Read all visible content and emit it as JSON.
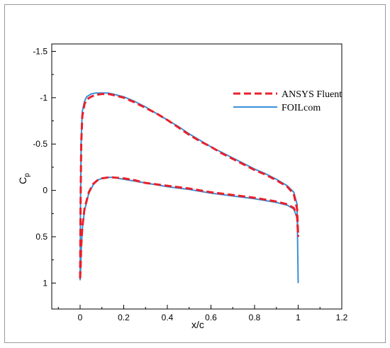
{
  "chart_data": {
    "type": "line",
    "title": "",
    "xlabel": "x/c",
    "ylabel": "C",
    "ylabel_subscript": "p",
    "xlim": [
      -0.13,
      1.2
    ],
    "ylim": [
      1.28,
      -1.58
    ],
    "y_inverted": true,
    "xticks": [
      0,
      0.2,
      0.4,
      0.6,
      0.8,
      1,
      1.2
    ],
    "xtick_labels": [
      "0",
      "0.2",
      "0.4",
      "0.6",
      "0.8",
      "1",
      "1.2"
    ],
    "yticks": [
      -1.5,
      -1,
      -0.5,
      0,
      0.5,
      1
    ],
    "ytick_labels": [
      "-1.5",
      "-1",
      "-0.5",
      "0",
      "0.5",
      "1"
    ],
    "grid": false,
    "legend_position": "top-right",
    "series": [
      {
        "name": "ANSYS Fluent",
        "color": "#e8202a",
        "dash": "dashed",
        "upper": {
          "x": [
            0,
            0.002,
            0.005,
            0.01,
            0.02,
            0.03,
            0.05,
            0.07,
            0.1,
            0.13,
            0.15,
            0.2,
            0.25,
            0.3,
            0.35,
            0.4,
            0.45,
            0.5,
            0.55,
            0.6,
            0.65,
            0.7,
            0.75,
            0.8,
            0.85,
            0.9,
            0.95,
            0.98,
            0.995,
            1.0
          ],
          "y": [
            0.95,
            0.2,
            -0.5,
            -0.8,
            -0.93,
            -0.98,
            -1.01,
            -1.03,
            -1.04,
            -1.04,
            -1.03,
            -1.0,
            -0.95,
            -0.89,
            -0.83,
            -0.76,
            -0.68,
            -0.6,
            -0.53,
            -0.47,
            -0.4,
            -0.34,
            -0.28,
            -0.22,
            -0.17,
            -0.11,
            -0.04,
            0.04,
            0.2,
            0.5
          ]
        },
        "lower": {
          "x": [
            0,
            0.002,
            0.005,
            0.01,
            0.02,
            0.04,
            0.06,
            0.08,
            0.1,
            0.13,
            0.15,
            0.2,
            0.25,
            0.3,
            0.4,
            0.5,
            0.6,
            0.7,
            0.8,
            0.85,
            0.9,
            0.95,
            0.98,
            0.995,
            1.0
          ],
          "y": [
            0.95,
            0.85,
            0.6,
            0.4,
            0.2,
            0.02,
            -0.07,
            -0.11,
            -0.13,
            -0.14,
            -0.14,
            -0.13,
            -0.11,
            -0.08,
            -0.05,
            -0.02,
            0.02,
            0.05,
            0.08,
            0.1,
            0.12,
            0.15,
            0.19,
            0.28,
            0.5
          ]
        }
      },
      {
        "name": "FOILcom",
        "color": "#3a8fd8",
        "dash": "solid",
        "upper": {
          "x": [
            0,
            0.002,
            0.005,
            0.01,
            0.02,
            0.03,
            0.05,
            0.07,
            0.1,
            0.13,
            0.15,
            0.2,
            0.25,
            0.3,
            0.35,
            0.4,
            0.45,
            0.5,
            0.55,
            0.6,
            0.65,
            0.7,
            0.75,
            0.8,
            0.85,
            0.9,
            0.95,
            0.98,
            0.995,
            1.0
          ],
          "y": [
            0.97,
            0.1,
            -0.55,
            -0.85,
            -0.96,
            -1.01,
            -1.04,
            -1.05,
            -1.05,
            -1.05,
            -1.04,
            -1.01,
            -0.96,
            -0.9,
            -0.83,
            -0.76,
            -0.69,
            -0.61,
            -0.54,
            -0.47,
            -0.41,
            -0.35,
            -0.29,
            -0.23,
            -0.18,
            -0.12,
            -0.05,
            0.02,
            0.15,
            1.0
          ]
        },
        "lower": {
          "x": [
            0,
            0.002,
            0.005,
            0.01,
            0.02,
            0.04,
            0.06,
            0.08,
            0.1,
            0.13,
            0.15,
            0.2,
            0.25,
            0.3,
            0.4,
            0.5,
            0.6,
            0.7,
            0.8,
            0.85,
            0.9,
            0.95,
            0.98,
            0.995,
            1.0
          ],
          "y": [
            0.97,
            0.88,
            0.65,
            0.42,
            0.22,
            0.03,
            -0.06,
            -0.11,
            -0.13,
            -0.14,
            -0.14,
            -0.12,
            -0.1,
            -0.08,
            -0.04,
            -0.01,
            0.03,
            0.06,
            0.09,
            0.11,
            0.13,
            0.16,
            0.2,
            0.3,
            0.45
          ]
        }
      }
    ]
  }
}
